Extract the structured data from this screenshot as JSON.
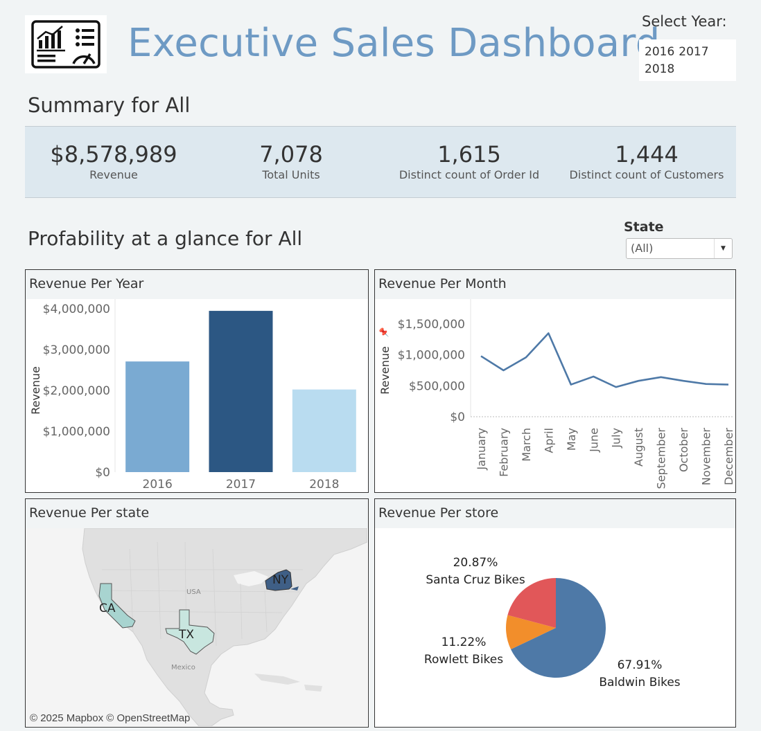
{
  "header": {
    "title": "Executive Sales Dashboard",
    "logo_icon": "dashboard-icon",
    "year_filter": {
      "label": "Select Year:",
      "options": [
        "2016",
        "2017",
        "2018"
      ]
    }
  },
  "summary": {
    "title": "Summary for All",
    "kpis": [
      {
        "value": "$8,578,989",
        "label": "Revenue"
      },
      {
        "value": "7,078",
        "label": "Total Units"
      },
      {
        "value": "1,615",
        "label": "Distinct count of Order Id"
      },
      {
        "value": "1,444",
        "label": "Distinct count of Customers"
      }
    ]
  },
  "profitability": {
    "title": "Profability at a glance for All",
    "state_filter": {
      "label": "State",
      "value": "(All)"
    }
  },
  "panels": {
    "year": {
      "title": "Revenue Per Year"
    },
    "month": {
      "title": "Revenue Per Month"
    },
    "state": {
      "title": "Revenue Per state"
    },
    "store": {
      "title": "Revenue Per store"
    }
  },
  "map": {
    "labels": {
      "ca": "CA",
      "tx": "TX",
      "ny": "NY",
      "usa": "USA",
      "mexico": "Mexico"
    },
    "attribution": "© 2025 Mapbox © OpenStreetMap",
    "colors": {
      "ca": "#a8d4d0",
      "tx": "#c8e6df",
      "ny": "#3f5f86",
      "land": "#e0e0e0",
      "water": "#f4f4f4"
    }
  },
  "chart_data": [
    {
      "type": "bar",
      "title": "Revenue Per Year",
      "ylabel": "Revenue",
      "categories": [
        "2016",
        "2017",
        "2018"
      ],
      "values": [
        2709000,
        3948000,
        2023000
      ],
      "colors": [
        "#7aaad2",
        "#2c5783",
        "#b9dcf0"
      ],
      "ylim": [
        0,
        4000000
      ],
      "yticks": [
        0,
        1000000,
        2000000,
        3000000,
        4000000
      ],
      "ytick_labels": [
        "$0",
        "$1,000,000",
        "$2,000,000",
        "$3,000,000",
        "$4,000,000"
      ]
    },
    {
      "type": "line",
      "title": "Revenue Per Month",
      "ylabel": "Revenue",
      "categories": [
        "January",
        "February",
        "March",
        "April",
        "May",
        "June",
        "July",
        "August",
        "September",
        "October",
        "November",
        "December"
      ],
      "values": [
        980000,
        750000,
        960000,
        1350000,
        520000,
        650000,
        480000,
        580000,
        640000,
        580000,
        530000,
        520000
      ],
      "color": "#4e79a7",
      "ylim": [
        0,
        1500000
      ],
      "yticks": [
        0,
        500000,
        1000000,
        1500000
      ],
      "ytick_labels": [
        "$0",
        "$500,000",
        "$1,000,000",
        "$1,500,000"
      ]
    },
    {
      "type": "pie",
      "title": "Revenue Per store",
      "slices": [
        {
          "label": "Baldwin Bikes",
          "pct_label": "67.91%",
          "value": 67.91,
          "color": "#4e79a7"
        },
        {
          "label": "Rowlett Bikes",
          "pct_label": "11.22%",
          "value": 11.22,
          "color": "#f28e2b"
        },
        {
          "label": "Santa Cruz Bikes",
          "pct_label": "20.87%",
          "value": 20.87,
          "color": "#e15759"
        }
      ]
    }
  ]
}
